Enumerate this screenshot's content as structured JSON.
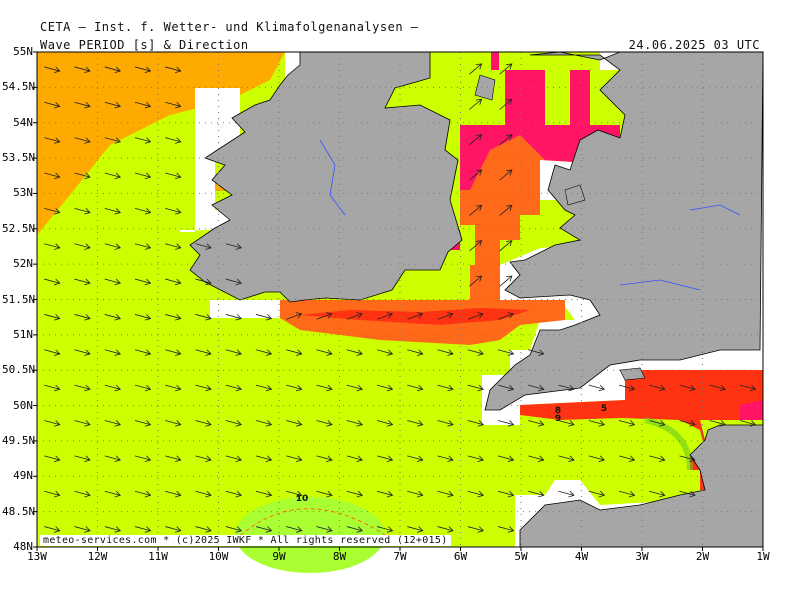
{
  "header": {
    "title": "CETA — Inst. f. Wetter- und Klimafolgenanalysen —",
    "parameter": "Wave PERIOD [s] & Direction",
    "timestamp": "24.06.2025 03 UTC"
  },
  "axes": {
    "lat_labels": [
      "55N",
      "54.5N",
      "54N",
      "53.5N",
      "53N",
      "52.5N",
      "52N",
      "51.5N",
      "51N",
      "50.5N",
      "50N",
      "49.5N",
      "49N",
      "48.5N",
      "48N"
    ],
    "lon_labels": [
      "13W",
      "12W",
      "11W",
      "10W",
      "9W",
      "8W",
      "7W",
      "6W",
      "5W",
      "4W",
      "3W",
      "2W",
      "1W"
    ]
  },
  "credit": "meteo-services.com * (c)2025 IWKF * All rights reserved (12+015)",
  "contour_labels": [
    "10",
    "8",
    "9",
    "5"
  ],
  "colors": {
    "period_7_8": "#ccff00",
    "period_9_10": "#aaff33",
    "period_11_plus": "#ffaa00",
    "period_short_orange": "#ff6a1a",
    "period_short_red": "#ff3311",
    "period_shortest": "#ff1466",
    "land": "#a6a6a6",
    "no_data": "#ffffff"
  }
}
